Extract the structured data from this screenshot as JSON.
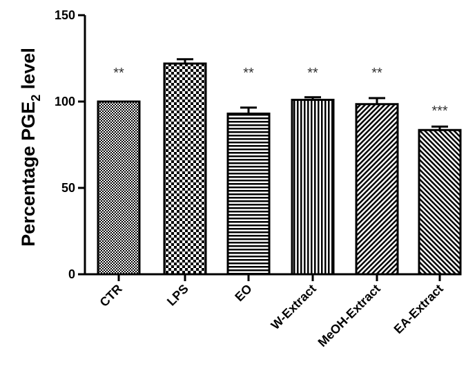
{
  "chart_data": {
    "type": "bar",
    "title": "",
    "xlabel": "",
    "ylabel_prefix": "Percentage PGE",
    "ylabel_sub": "2",
    "ylabel_suffix": " level",
    "ylim": [
      0,
      150
    ],
    "yticks": [
      "0",
      "50",
      "100",
      "150"
    ],
    "categories": [
      "CTR",
      "LPS",
      "EO",
      "W-Extract",
      "MeOH-Extract",
      "EA-Extract"
    ],
    "values": [
      100,
      122,
      93,
      101,
      98.5,
      83.5
    ],
    "errors": [
      0,
      2.5,
      3.5,
      1.5,
      3.5,
      2.0
    ],
    "patterns": [
      "crosshatch",
      "checker",
      "horizontal",
      "vertical",
      "diagonal-fwd",
      "diagonal-back"
    ],
    "significance": [
      "**",
      "",
      "**",
      "**",
      "**",
      "***"
    ],
    "grid": false
  }
}
